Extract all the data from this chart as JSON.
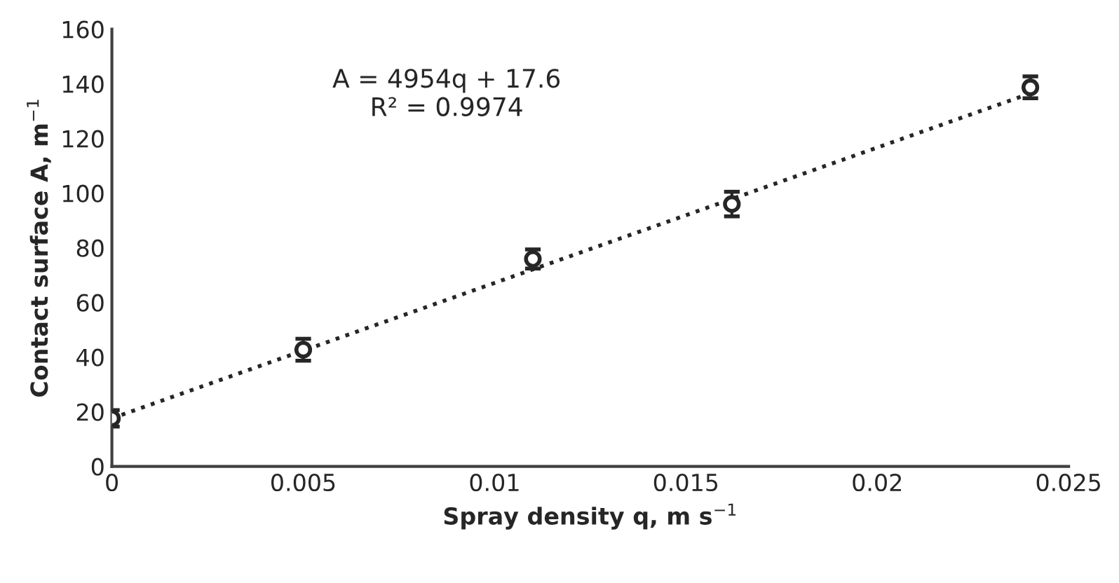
{
  "chart_data": {
    "type": "scatter",
    "xlabel": "Spray density q, m s$^{−1}$",
    "ylabel": "Contact surface A, m$^{−1}$",
    "x": [
      0,
      0.005,
      0.011,
      0.0162,
      0.024
    ],
    "series": [
      {
        "color": "#262626",
        "values": [
          17.6,
          42.7,
          75.9,
          96,
          138.7
        ],
        "errors": [
          3,
          4,
          3.5,
          4.5,
          4
        ],
        "marker": "circle"
      },
      {
        "type": "line",
        "color": "#262626",
        "x": [
          0,
          0.024
        ],
        "values": [
          17.6,
          136.5
        ],
        "line_style": "dotted",
        "marker": "none"
      }
    ],
    "annotations": [
      "A = 4954q + 17.6\nR² = 0.9974"
    ],
    "xlim": [
      0,
      0.025
    ],
    "xticks": [
      0,
      0.005,
      0.01,
      0.015,
      0.02,
      0.025
    ],
    "ylim": [
      0,
      160
    ],
    "yticks": [
      0,
      20,
      40,
      60,
      80,
      100,
      120,
      140,
      160
    ],
    "grid": false,
    "legend": false
  }
}
